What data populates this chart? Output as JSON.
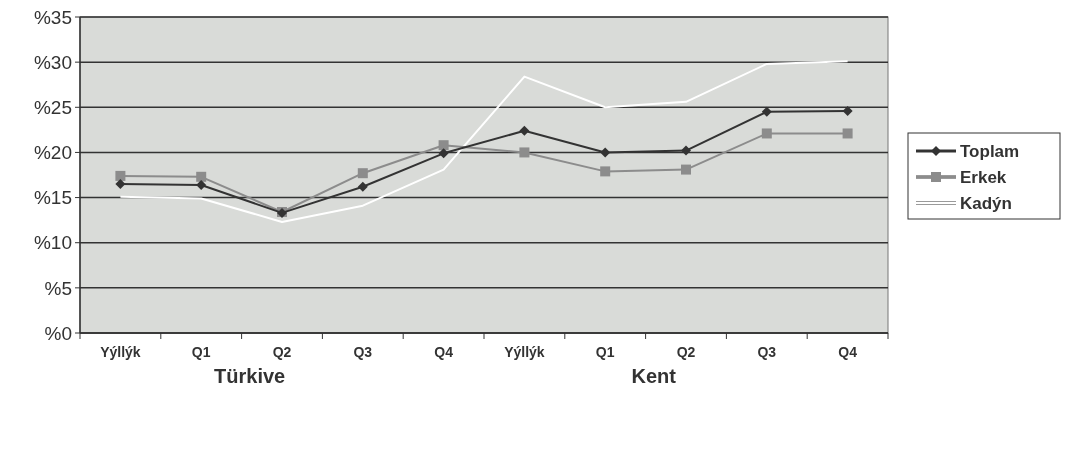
{
  "chart_data": {
    "type": "line",
    "categories": [
      "Yýllýk",
      "Q1",
      "Q2",
      "Q3",
      "Q4",
      "Yýllýk",
      "Q1",
      "Q2",
      "Q3",
      "Q4"
    ],
    "series": [
      {
        "name": "Toplam",
        "color": "#333333",
        "marker": "diamond",
        "values": [
          16.5,
          16.4,
          13.3,
          16.2,
          19.9,
          22.4,
          20.0,
          20.2,
          24.5,
          24.6
        ]
      },
      {
        "name": "Erkek",
        "color": "#8c8c8c",
        "marker": "square",
        "values": [
          17.4,
          17.3,
          13.4,
          17.7,
          20.8,
          20.0,
          17.9,
          18.1,
          22.1,
          22.1
        ]
      },
      {
        "name": "Kadýn",
        "color": "#ffffff",
        "marker": "none",
        "values": [
          15.1,
          14.9,
          12.3,
          14.1,
          18.1,
          28.4,
          25.0,
          25.6,
          29.8,
          30.1
        ]
      }
    ],
    "annotations": [
      "Türkive",
      "Kent"
    ],
    "ylim": [
      0,
      35
    ],
    "yticks": [
      {
        "value": 0,
        "label": "%0"
      },
      {
        "value": 5,
        "label": "%5"
      },
      {
        "value": 10,
        "label": "%10"
      },
      {
        "value": 15,
        "label": "%15"
      },
      {
        "value": 20,
        "label": "%20"
      },
      {
        "value": 25,
        "label": "%25"
      },
      {
        "value": 30,
        "label": "%30"
      },
      {
        "value": 35,
        "label": "%35"
      }
    ],
    "grid": "y",
    "legend": "right"
  }
}
